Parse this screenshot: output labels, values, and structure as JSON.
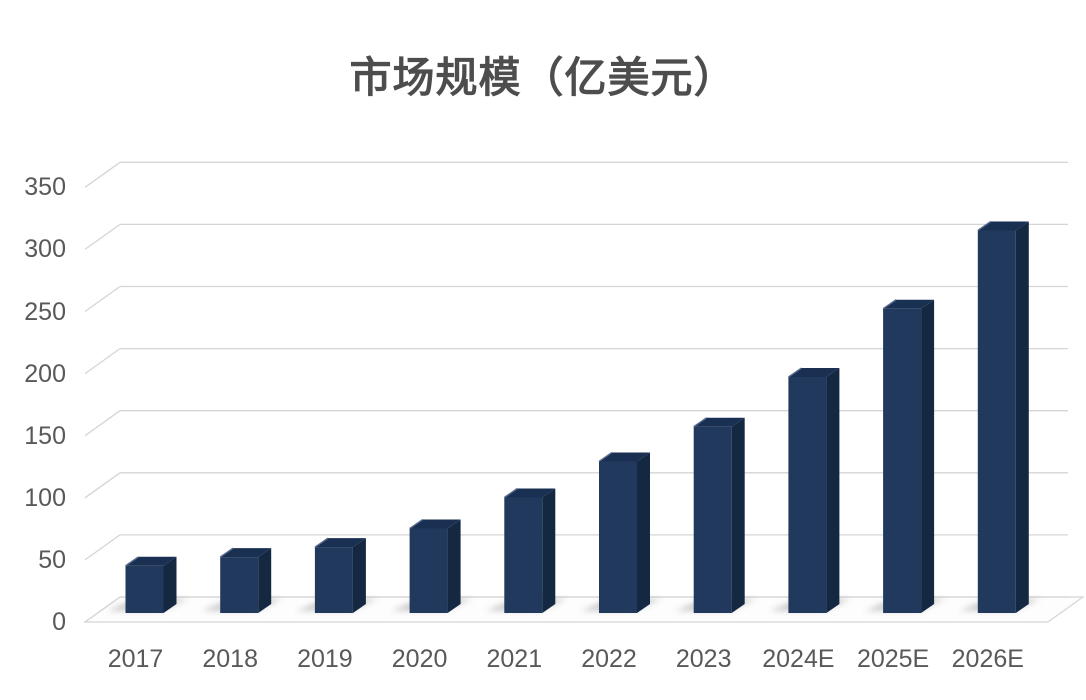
{
  "chart_data": {
    "type": "bar",
    "style": "3d-column",
    "title": "市场规模（亿美元）",
    "unit": "亿美元",
    "categories": [
      "2017",
      "2018",
      "2019",
      "2020",
      "2021",
      "2022",
      "2023",
      "2024E",
      "2025E",
      "2026E"
    ],
    "values": [
      38,
      45,
      53,
      68,
      93,
      122,
      150,
      190,
      245,
      308
    ],
    "xlabel": "",
    "ylabel": "",
    "ylim": [
      0,
      350
    ],
    "yticks": [
      0,
      50,
      100,
      150,
      200,
      250,
      300,
      350
    ],
    "grid": true,
    "legend": false,
    "colors": {
      "bar_front": "#21395D",
      "bar_top": "#1A3052",
      "bar_side": "#142842",
      "bar_bevel": "#5A6C8F",
      "grid": "#D5D5D5",
      "floor_stroke": "#D5D5D5",
      "floor_fill": "#FDFDFD",
      "axis_label": "#595959",
      "title": "#4D4D4D",
      "background": "#FFFFFF",
      "shadow": "rgba(110,110,110,0.33)"
    }
  }
}
